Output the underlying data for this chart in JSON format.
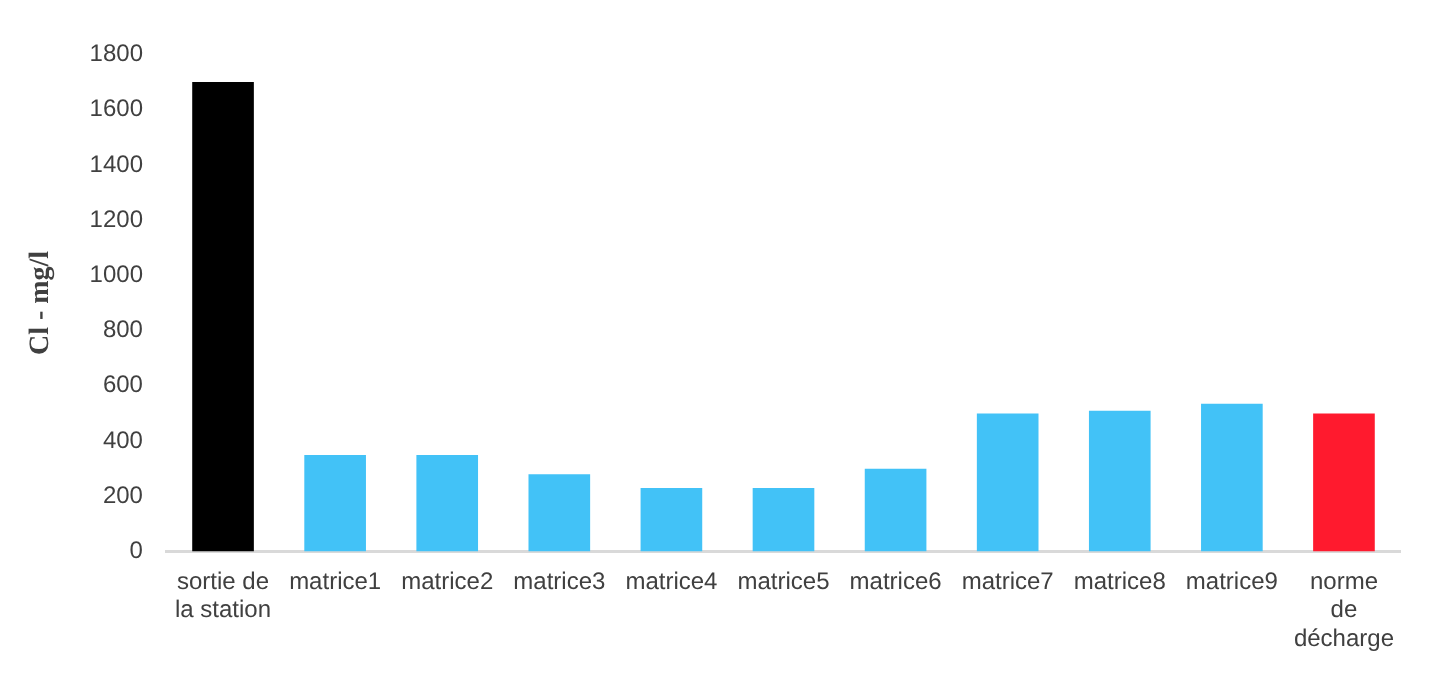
{
  "chart_data": {
    "type": "bar",
    "ylabel": "Cl - mg/l",
    "categories": [
      "sortie de la station",
      "matrice1",
      "matrice2",
      "matrice3",
      "matrice4",
      "matrice5",
      "matrice6",
      "matrice7",
      "matrice8",
      "matrice9",
      "norme de décharge"
    ],
    "values": [
      1700,
      350,
      350,
      280,
      230,
      230,
      300,
      500,
      510,
      535,
      500
    ],
    "colors": [
      "#000000",
      "#42c2f7",
      "#42c2f7",
      "#42c2f7",
      "#42c2f7",
      "#42c2f7",
      "#42c2f7",
      "#42c2f7",
      "#42c2f7",
      "#42c2f7",
      "#ff1a2e"
    ],
    "ylim": [
      0,
      1800
    ],
    "yticks": [
      0,
      200,
      400,
      600,
      800,
      1000,
      1200,
      1400,
      1600,
      1800
    ],
    "grid": false,
    "legend": false
  }
}
